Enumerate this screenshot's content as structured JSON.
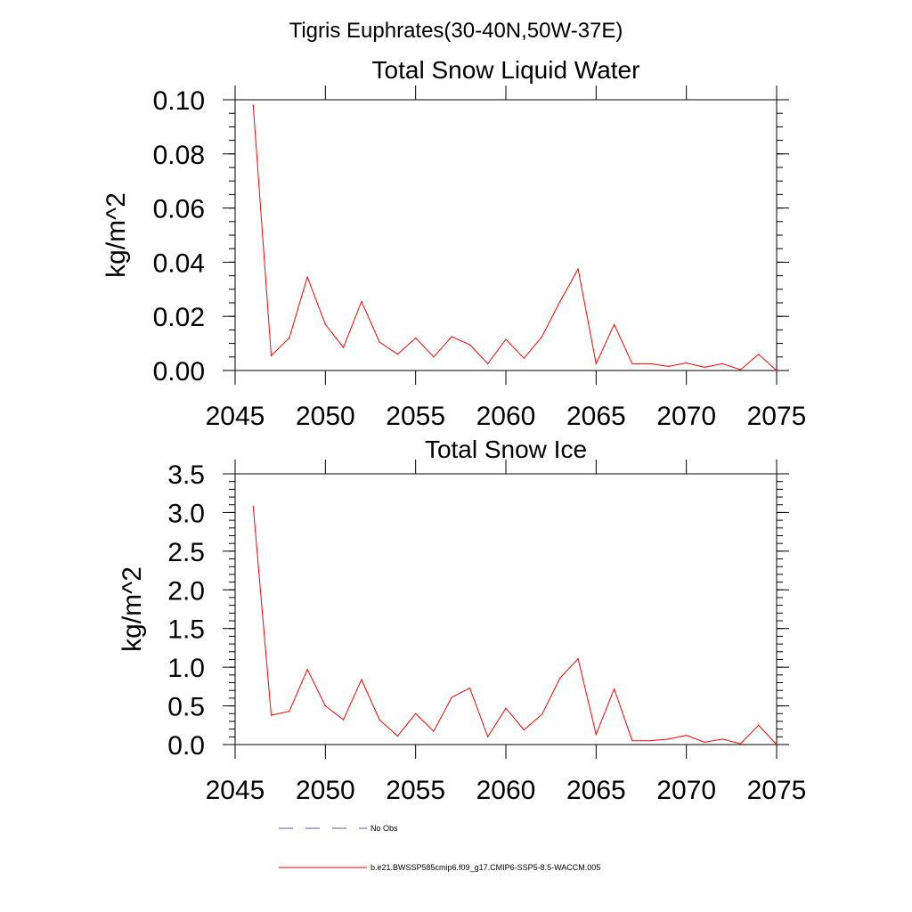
{
  "figure": {
    "suptitle": "Tigris Euphrates(30-40N,50W-37E)"
  },
  "legend": {
    "items": [
      {
        "label": "No Obs",
        "color": "#5a5a9a",
        "dash": "dashed"
      },
      {
        "label": "b.e21.BWSSP585cmip6.f09_g17.CMIP6-SSP5-8.5-WACCM.005",
        "color": "#ff0000",
        "dash": "solid"
      }
    ]
  },
  "chart_data": [
    {
      "type": "line",
      "title": "Total Snow Liquid Water",
      "ylabel": "kg/m^2",
      "xlabel": "",
      "xlim": [
        2045,
        2075
      ],
      "ylim": [
        0,
        0.1
      ],
      "xticks": [
        2045,
        2050,
        2055,
        2060,
        2065,
        2070,
        2075
      ],
      "yticks": [
        "0.00",
        "0.02",
        "0.04",
        "0.06",
        "0.08",
        "0.10"
      ],
      "ytick_values": [
        0,
        0.02,
        0.04,
        0.06,
        0.08,
        0.1
      ],
      "grid": false,
      "series": [
        {
          "name": "b.e21.BWSSP585cmip6.f09_g17.CMIP6-SSP5-8.5-WACCM.005",
          "color": "#ff0000",
          "x": [
            2046,
            2047,
            2048,
            2049,
            2050,
            2051,
            2052,
            2053,
            2054,
            2055,
            2056,
            2057,
            2058,
            2059,
            2060,
            2061,
            2062,
            2063,
            2064,
            2065,
            2066,
            2067,
            2068,
            2069,
            2070,
            2071,
            2072,
            2073,
            2074,
            2075
          ],
          "values": [
            0.098,
            0.0055,
            0.012,
            0.0345,
            0.017,
            0.0085,
            0.0255,
            0.0105,
            0.006,
            0.012,
            0.005,
            0.0125,
            0.0095,
            0.0025,
            0.0115,
            0.0045,
            0.0125,
            0.0255,
            0.0375,
            0.0025,
            0.017,
            0.0025,
            0.0025,
            0.0015,
            0.0028,
            0.0012,
            0.0025,
            0.0003,
            0.006,
            0.0
          ]
        }
      ]
    },
    {
      "type": "line",
      "title": "Total Snow Ice",
      "ylabel": "kg/m^2",
      "xlabel": "",
      "xlim": [
        2045,
        2075
      ],
      "ylim": [
        0,
        3.5
      ],
      "xticks": [
        2045,
        2050,
        2055,
        2060,
        2065,
        2070,
        2075
      ],
      "yticks": [
        "0.0",
        "0.5",
        "1.0",
        "1.5",
        "2.0",
        "2.5",
        "3.0",
        "3.5"
      ],
      "ytick_values": [
        0,
        0.5,
        1.0,
        1.5,
        2.0,
        2.5,
        3.0,
        3.5
      ],
      "grid": false,
      "series": [
        {
          "name": "b.e21.BWSSP585cmip6.f09_g17.CMIP6-SSP5-8.5-WACCM.005",
          "color": "#ff0000",
          "x": [
            2046,
            2047,
            2048,
            2049,
            2050,
            2051,
            2052,
            2053,
            2054,
            2055,
            2056,
            2057,
            2058,
            2059,
            2060,
            2061,
            2062,
            2063,
            2064,
            2065,
            2066,
            2067,
            2068,
            2069,
            2070,
            2071,
            2072,
            2073,
            2074,
            2075
          ],
          "values": [
            3.08,
            0.38,
            0.43,
            0.97,
            0.5,
            0.32,
            0.84,
            0.32,
            0.11,
            0.4,
            0.17,
            0.61,
            0.73,
            0.1,
            0.47,
            0.19,
            0.39,
            0.86,
            1.11,
            0.13,
            0.72,
            0.05,
            0.05,
            0.07,
            0.12,
            0.03,
            0.07,
            0.01,
            0.25,
            0.0
          ]
        }
      ]
    }
  ]
}
